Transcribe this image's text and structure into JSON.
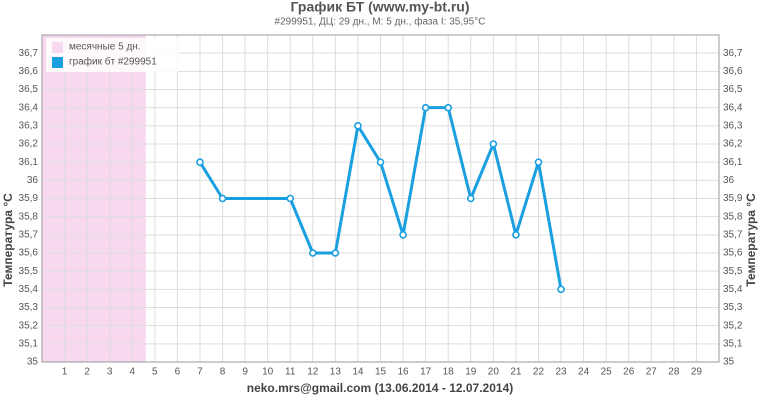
{
  "chart_data": {
    "type": "line",
    "title": "График БТ (www.my-bt.ru)",
    "subtitle": "#299951, ДЦ: 29 дн., М: 5 дн., фаза I: 35,95°C",
    "x_label": "neko.mrs@gmail.com (13.06.2014 - 12.07.2014)",
    "y_label": "Температура °C",
    "xlim": [
      0,
      30
    ],
    "xticks": [
      1,
      2,
      3,
      4,
      5,
      6,
      7,
      8,
      9,
      10,
      11,
      12,
      13,
      14,
      15,
      16,
      17,
      18,
      19,
      20,
      21,
      22,
      23,
      24,
      25,
      26,
      27,
      28,
      29
    ],
    "ylim": [
      35,
      36.8
    ],
    "yticks": [
      35,
      {
        "value": 35.1,
        "label": "35,1"
      },
      {
        "value": 35.2,
        "label": "35,2"
      },
      {
        "value": 35.3,
        "label": "35,3"
      },
      {
        "value": 35.4,
        "label": "35,4"
      },
      {
        "value": 35.5,
        "label": "35,5"
      },
      {
        "value": 35.6,
        "label": "35,6"
      },
      {
        "value": 35.7,
        "label": "35,7"
      },
      {
        "value": 35.8,
        "label": "35,8"
      },
      {
        "value": 35.9,
        "label": "35,9"
      },
      36,
      {
        "value": 36.1,
        "label": "36,1"
      },
      {
        "value": 36.2,
        "label": "36,2"
      },
      {
        "value": 36.3,
        "label": "36,3"
      },
      {
        "value": 36.4,
        "label": "36,4"
      },
      {
        "value": 36.5,
        "label": "36,5"
      },
      {
        "value": 36.6,
        "label": "36,6"
      },
      {
        "value": 36.7,
        "label": "36,7"
      }
    ],
    "grid": true,
    "legend": "top-left",
    "band": {
      "name": "месячные 5 дн.",
      "color": "#f8d8ee",
      "x": [
        0,
        4.6
      ]
    },
    "series": [
      {
        "name": "график бт #299951",
        "color": "#1a9fe0",
        "x": [
          7,
          8,
          11,
          12,
          13,
          14,
          15,
          16,
          17,
          18,
          19,
          20,
          21,
          22,
          23
        ],
        "values": [
          36.1,
          35.9,
          35.9,
          35.6,
          35.6,
          36.3,
          36.1,
          35.7,
          36.4,
          36.4,
          35.9,
          36.2,
          35.7,
          36.1,
          35.4
        ]
      }
    ]
  }
}
